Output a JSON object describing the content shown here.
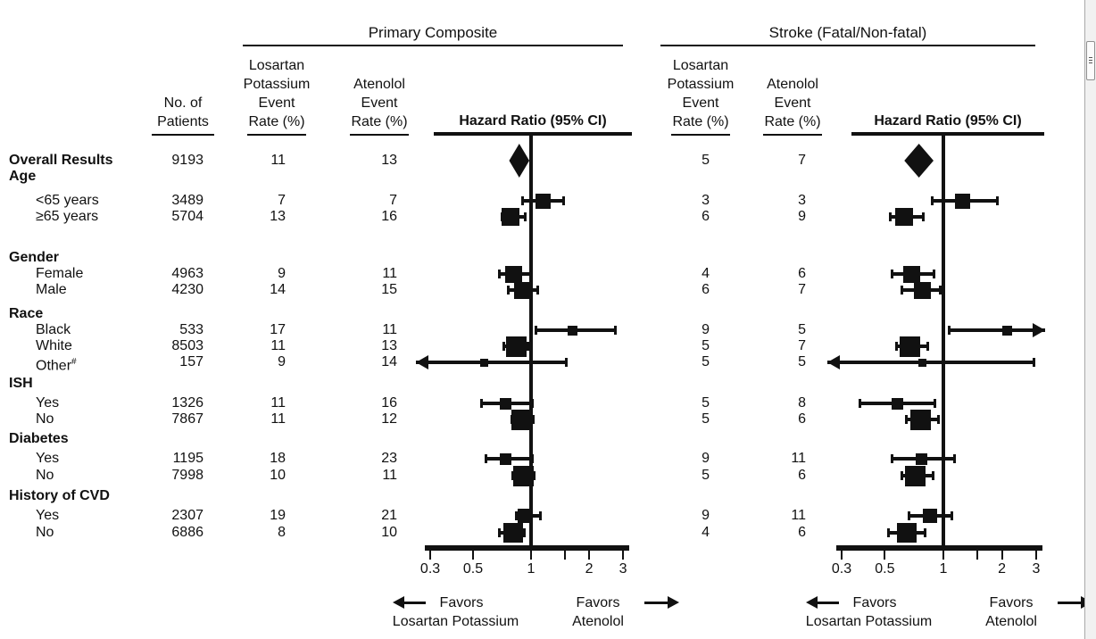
{
  "panels": {
    "left_title": "Primary Composite",
    "right_title": "Stroke (Fatal/Non-fatal)"
  },
  "col_headers": {
    "patients": {
      "l1": "No. of",
      "l2": "Patients"
    },
    "losartan": {
      "l1": "Losartan",
      "l2": "Potassium",
      "l3": "Event",
      "l4": "Rate (%)"
    },
    "atenolol": {
      "l1": "Atenolol",
      "l2": "Event",
      "l3": "Rate (%)"
    },
    "hazard": "Hazard Ratio (95% CI)"
  },
  "favors": {
    "favors": "Favors",
    "losartan": "Losartan Potassium",
    "atenolol": "Atenolol"
  },
  "colors": {
    "ink": "#111111",
    "scroll_track": "#f1f1f1"
  },
  "rows": [
    {
      "id": "overall",
      "label": "Overall Results",
      "bold": true,
      "n": 9193,
      "pc": [
        11,
        13
      ],
      "st": [
        5,
        7
      ]
    },
    {
      "id": "age",
      "label": "Age",
      "bold": true
    },
    {
      "id": "lt65",
      "label": "<65 years",
      "n": 3489,
      "pc": [
        7,
        7
      ],
      "st": [
        3,
        3
      ]
    },
    {
      "id": "ge65",
      "label": "≥65 years",
      "n": 5704,
      "pc": [
        13,
        16
      ],
      "st": [
        6,
        9
      ]
    },
    {
      "id": "gender",
      "label": "Gender",
      "bold": true
    },
    {
      "id": "female",
      "label": "Female",
      "n": 4963,
      "pc": [
        9,
        11
      ],
      "st": [
        4,
        6
      ]
    },
    {
      "id": "male",
      "label": "Male",
      "n": 4230,
      "pc": [
        14,
        15
      ],
      "st": [
        6,
        7
      ]
    },
    {
      "id": "race",
      "label": "Race",
      "bold": true
    },
    {
      "id": "black",
      "label": "Black",
      "n": 533,
      "pc": [
        17,
        11
      ],
      "st": [
        9,
        5
      ]
    },
    {
      "id": "white",
      "label": "White",
      "n": 8503,
      "pc": [
        11,
        13
      ],
      "st": [
        5,
        7
      ]
    },
    {
      "id": "other",
      "label": "Other",
      "sup": "#",
      "n": 157,
      "pc": [
        9,
        14
      ],
      "st": [
        5,
        5
      ]
    },
    {
      "id": "ish",
      "label": "ISH",
      "bold": true
    },
    {
      "id": "ish_yes",
      "label": "Yes",
      "n": 1326,
      "pc": [
        11,
        16
      ],
      "st": [
        5,
        8
      ]
    },
    {
      "id": "ish_no",
      "label": "No",
      "n": 7867,
      "pc": [
        11,
        12
      ],
      "st": [
        5,
        6
      ]
    },
    {
      "id": "diabetes",
      "label": "Diabetes",
      "bold": true
    },
    {
      "id": "diab_yes",
      "label": "Yes",
      "n": 1195,
      "pc": [
        18,
        23
      ],
      "st": [
        9,
        11
      ]
    },
    {
      "id": "diab_no",
      "label": "No",
      "n": 7998,
      "pc": [
        10,
        11
      ],
      "st": [
        5,
        6
      ]
    },
    {
      "id": "cvd",
      "label": "History of CVD",
      "bold": true
    },
    {
      "id": "cvd_yes",
      "label": "Yes",
      "n": 2307,
      "pc": [
        19,
        21
      ],
      "st": [
        9,
        11
      ]
    },
    {
      "id": "cvd_no",
      "label": "No",
      "n": 6886,
      "pc": [
        8,
        10
      ],
      "st": [
        4,
        6
      ]
    }
  ],
  "chart_data": [
    {
      "type": "forest",
      "title": "Primary Composite",
      "xlabel": "Hazard Ratio (95% CI)",
      "xscale": "log",
      "xlim": [
        0.3,
        3
      ],
      "ref_line": 1,
      "ticks": [
        0.3,
        0.5,
        1,
        1.5,
        2,
        3
      ],
      "tick_labels": [
        {
          "v": 0.3,
          "label": "0.3"
        },
        {
          "v": 0.5,
          "label": "0.5"
        },
        {
          "v": 1,
          "label": "1"
        },
        {
          "v": 2,
          "label": "2"
        },
        {
          "v": 3,
          "label": "3"
        }
      ],
      "points": [
        {
          "row": "overall",
          "hr": 0.87,
          "lo": 0.77,
          "hi": 0.98,
          "marker": "diamond"
        },
        {
          "row": "lt65",
          "hr": 1.15,
          "lo": 0.9,
          "hi": 1.49
        },
        {
          "row": "ge65",
          "hr": 0.78,
          "lo": 0.7,
          "hi": 0.94
        },
        {
          "row": "female",
          "hr": 0.81,
          "lo": 0.68,
          "hi": 1.01
        },
        {
          "row": "male",
          "hr": 0.9,
          "lo": 0.76,
          "hi": 1.09
        },
        {
          "row": "black",
          "hr": 1.64,
          "lo": 1.05,
          "hi": 2.75
        },
        {
          "row": "white",
          "hr": 0.84,
          "lo": 0.72,
          "hi": 0.97
        },
        {
          "row": "other",
          "hr": 0.57,
          "lo": 0.25,
          "hi": 1.53,
          "lo_offscale": true
        },
        {
          "row": "ish_yes",
          "hr": 0.74,
          "lo": 0.55,
          "hi": 1.02
        },
        {
          "row": "ish_no",
          "hr": 0.89,
          "lo": 0.79,
          "hi": 1.03
        },
        {
          "row": "diab_yes",
          "hr": 0.74,
          "lo": 0.58,
          "hi": 1.02
        },
        {
          "row": "diab_no",
          "hr": 0.91,
          "lo": 0.8,
          "hi": 1.04
        },
        {
          "row": "cvd_yes",
          "hr": 0.93,
          "lo": 0.83,
          "hi": 1.13
        },
        {
          "row": "cvd_no",
          "hr": 0.81,
          "lo": 0.68,
          "hi": 0.93
        }
      ]
    },
    {
      "type": "forest",
      "title": "Stroke (Fatal/Non-fatal)",
      "xlabel": "Hazard Ratio (95% CI)",
      "xscale": "log",
      "xlim": [
        0.3,
        3
      ],
      "ref_line": 1,
      "ticks": [
        0.3,
        0.5,
        1,
        1.5,
        2,
        3
      ],
      "tick_labels": [
        {
          "v": 0.3,
          "label": "0.3"
        },
        {
          "v": 0.5,
          "label": "0.5"
        },
        {
          "v": 1,
          "label": "1"
        },
        {
          "v": 2,
          "label": "2"
        },
        {
          "v": 3,
          "label": "3"
        }
      ],
      "points": [
        {
          "row": "overall",
          "hr": 0.75,
          "lo": 0.63,
          "hi": 0.89,
          "marker": "diamond"
        },
        {
          "row": "lt65",
          "hr": 1.26,
          "lo": 0.87,
          "hi": 1.91
        },
        {
          "row": "ge65",
          "hr": 0.63,
          "lo": 0.53,
          "hi": 0.79
        },
        {
          "row": "female",
          "hr": 0.69,
          "lo": 0.54,
          "hi": 0.9
        },
        {
          "row": "male",
          "hr": 0.78,
          "lo": 0.61,
          "hi": 0.97
        },
        {
          "row": "black",
          "hr": 2.12,
          "lo": 1.06,
          "hi": 3.2,
          "hi_offscale": true
        },
        {
          "row": "white",
          "hr": 0.67,
          "lo": 0.57,
          "hi": 0.84
        },
        {
          "row": "other",
          "hr": 0.78,
          "lo": 0.25,
          "hi": 2.94,
          "lo_offscale": true
        },
        {
          "row": "ish_yes",
          "hr": 0.58,
          "lo": 0.37,
          "hi": 0.91
        },
        {
          "row": "ish_no",
          "hr": 0.76,
          "lo": 0.64,
          "hi": 0.95
        },
        {
          "row": "diab_yes",
          "hr": 0.77,
          "lo": 0.54,
          "hi": 1.15
        },
        {
          "row": "diab_no",
          "hr": 0.72,
          "lo": 0.61,
          "hi": 0.89
        },
        {
          "row": "cvd_yes",
          "hr": 0.85,
          "lo": 0.66,
          "hi": 1.11
        },
        {
          "row": "cvd_no",
          "hr": 0.65,
          "lo": 0.52,
          "hi": 0.81
        }
      ]
    }
  ]
}
